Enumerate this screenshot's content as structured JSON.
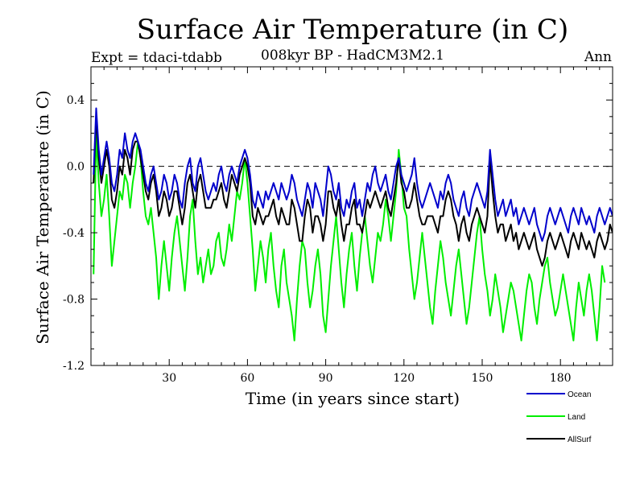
{
  "chart_data": {
    "type": "line",
    "title": "Surface Air Temperature (in C)",
    "subtitle": "008kyr BP - HadCM3M2.1",
    "left_label": "Expt = tdaci-tdabb",
    "right_label": "Ann",
    "xlabel": "Time (in years since start)",
    "ylabel": "Surface Air Temperature (in C)",
    "xlim": [
      0,
      200
    ],
    "ylim": [
      -1.2,
      0.6
    ],
    "x_ticks": [
      30,
      60,
      90,
      120,
      150,
      180
    ],
    "y_ticks": [
      0.4,
      0.0,
      -0.4,
      -0.8,
      -1.2
    ],
    "y_tick_labels": [
      "0.4",
      "0.0",
      "-0.4",
      "-0.8",
      "-1.2"
    ],
    "reference_line": 0.0,
    "series": [
      {
        "name": "Ocean",
        "color": "#0000cc",
        "values": [
          -0.05,
          0.35,
          0.1,
          -0.05,
          0.05,
          0.15,
          0.05,
          -0.1,
          -0.15,
          -0.05,
          0.1,
          0.05,
          0.2,
          0.1,
          0.05,
          0.15,
          0.2,
          0.15,
          0.1,
          0.0,
          -0.1,
          -0.15,
          -0.05,
          0.0,
          -0.1,
          -0.2,
          -0.15,
          -0.05,
          -0.1,
          -0.2,
          -0.15,
          -0.05,
          -0.1,
          -0.2,
          -0.25,
          -0.1,
          0.0,
          0.05,
          -0.1,
          -0.15,
          0.0,
          0.05,
          -0.05,
          -0.15,
          -0.2,
          -0.15,
          -0.1,
          -0.15,
          -0.05,
          0.0,
          -0.1,
          -0.15,
          -0.05,
          0.0,
          -0.05,
          -0.1,
          0.0,
          0.05,
          0.1,
          0.05,
          -0.05,
          -0.2,
          -0.25,
          -0.15,
          -0.2,
          -0.25,
          -0.15,
          -0.2,
          -0.15,
          -0.1,
          -0.15,
          -0.2,
          -0.1,
          -0.15,
          -0.2,
          -0.15,
          -0.05,
          -0.1,
          -0.2,
          -0.25,
          -0.3,
          -0.2,
          -0.1,
          -0.15,
          -0.25,
          -0.1,
          -0.15,
          -0.2,
          -0.3,
          -0.15,
          0.0,
          -0.05,
          -0.15,
          -0.2,
          -0.1,
          -0.25,
          -0.3,
          -0.2,
          -0.25,
          -0.15,
          -0.1,
          -0.25,
          -0.2,
          -0.3,
          -0.2,
          -0.1,
          -0.15,
          -0.05,
          0.0,
          -0.1,
          -0.15,
          -0.1,
          -0.05,
          -0.15,
          -0.2,
          -0.1,
          0.0,
          0.05,
          -0.05,
          -0.1,
          -0.15,
          -0.1,
          -0.05,
          0.05,
          -0.1,
          -0.2,
          -0.25,
          -0.2,
          -0.15,
          -0.1,
          -0.15,
          -0.2,
          -0.25,
          -0.15,
          -0.2,
          -0.1,
          -0.05,
          -0.1,
          -0.2,
          -0.25,
          -0.3,
          -0.2,
          -0.15,
          -0.25,
          -0.3,
          -0.2,
          -0.15,
          -0.1,
          -0.15,
          -0.2,
          -0.25,
          -0.15,
          0.1,
          -0.05,
          -0.2,
          -0.3,
          -0.25,
          -0.2,
          -0.3,
          -0.25,
          -0.2,
          -0.3,
          -0.25,
          -0.35,
          -0.3,
          -0.25,
          -0.3,
          -0.35,
          -0.3,
          -0.25,
          -0.35,
          -0.4,
          -0.45,
          -0.4,
          -0.3,
          -0.25,
          -0.3,
          -0.35,
          -0.3,
          -0.25,
          -0.3,
          -0.35,
          -0.4,
          -0.3,
          -0.25,
          -0.3,
          -0.35,
          -0.25,
          -0.3,
          -0.35,
          -0.3,
          -0.35,
          -0.4,
          -0.3,
          -0.25,
          -0.3,
          -0.35,
          -0.3,
          -0.25,
          -0.3
        ],
        "x_start": 1
      },
      {
        "name": "Land",
        "color": "#00ee00",
        "values": [
          -0.65,
          0.2,
          -0.1,
          -0.3,
          -0.2,
          -0.05,
          -0.3,
          -0.6,
          -0.45,
          -0.3,
          -0.15,
          -0.2,
          -0.05,
          -0.1,
          -0.25,
          -0.1,
          0.0,
          0.15,
          0.05,
          -0.15,
          -0.3,
          -0.35,
          -0.25,
          -0.4,
          -0.55,
          -0.8,
          -0.6,
          -0.45,
          -0.6,
          -0.75,
          -0.55,
          -0.4,
          -0.3,
          -0.45,
          -0.6,
          -0.75,
          -0.55,
          -0.3,
          -0.2,
          -0.45,
          -0.65,
          -0.55,
          -0.7,
          -0.6,
          -0.5,
          -0.65,
          -0.6,
          -0.45,
          -0.4,
          -0.55,
          -0.6,
          -0.5,
          -0.35,
          -0.45,
          -0.3,
          -0.15,
          -0.2,
          -0.1,
          0.05,
          -0.1,
          -0.3,
          -0.5,
          -0.75,
          -0.6,
          -0.45,
          -0.55,
          -0.7,
          -0.5,
          -0.4,
          -0.6,
          -0.75,
          -0.85,
          -0.6,
          -0.5,
          -0.7,
          -0.8,
          -0.9,
          -1.05,
          -0.8,
          -0.6,
          -0.45,
          -0.5,
          -0.7,
          -0.85,
          -0.75,
          -0.6,
          -0.5,
          -0.65,
          -0.9,
          -1.0,
          -0.8,
          -0.6,
          -0.45,
          -0.3,
          -0.5,
          -0.7,
          -0.85,
          -0.65,
          -0.5,
          -0.4,
          -0.6,
          -0.75,
          -0.55,
          -0.4,
          -0.3,
          -0.45,
          -0.6,
          -0.7,
          -0.55,
          -0.4,
          -0.45,
          -0.35,
          -0.2,
          -0.3,
          -0.45,
          -0.3,
          -0.15,
          0.1,
          -0.05,
          -0.25,
          -0.3,
          -0.5,
          -0.65,
          -0.8,
          -0.7,
          -0.55,
          -0.4,
          -0.55,
          -0.7,
          -0.85,
          -0.95,
          -0.75,
          -0.6,
          -0.45,
          -0.55,
          -0.7,
          -0.8,
          -0.9,
          -0.75,
          -0.6,
          -0.5,
          -0.65,
          -0.8,
          -0.95,
          -0.85,
          -0.7,
          -0.55,
          -0.4,
          -0.3,
          -0.5,
          -0.65,
          -0.75,
          -0.9,
          -0.8,
          -0.65,
          -0.75,
          -0.85,
          -1.0,
          -0.9,
          -0.8,
          -0.7,
          -0.75,
          -0.85,
          -0.95,
          -1.05,
          -0.9,
          -0.75,
          -0.65,
          -0.7,
          -0.85,
          -0.95,
          -0.8,
          -0.7,
          -0.6,
          -0.55,
          -0.7,
          -0.8,
          -0.9,
          -0.85,
          -0.75,
          -0.65,
          -0.75,
          -0.85,
          -0.95,
          -1.05,
          -0.85,
          -0.7,
          -0.8,
          -0.9,
          -0.75,
          -0.65,
          -0.75,
          -0.9,
          -1.05,
          -0.85,
          -0.6,
          -0.7
        ],
        "x_start": 1
      },
      {
        "name": "AllSurf",
        "color": "#000000",
        "values": [
          -0.1,
          0.3,
          0.05,
          -0.1,
          0.0,
          0.1,
          0.0,
          -0.2,
          -0.25,
          -0.15,
          0.0,
          -0.05,
          0.1,
          0.05,
          -0.05,
          0.1,
          0.15,
          0.15,
          0.05,
          -0.05,
          -0.15,
          -0.2,
          -0.1,
          -0.05,
          -0.15,
          -0.3,
          -0.25,
          -0.15,
          -0.2,
          -0.3,
          -0.25,
          -0.15,
          -0.15,
          -0.25,
          -0.35,
          -0.25,
          -0.1,
          -0.05,
          -0.15,
          -0.25,
          -0.1,
          -0.05,
          -0.15,
          -0.25,
          -0.25,
          -0.25,
          -0.2,
          -0.2,
          -0.15,
          -0.1,
          -0.2,
          -0.25,
          -0.15,
          -0.05,
          -0.1,
          -0.15,
          -0.05,
          0.0,
          0.05,
          0.0,
          -0.1,
          -0.3,
          -0.35,
          -0.25,
          -0.3,
          -0.35,
          -0.3,
          -0.3,
          -0.25,
          -0.2,
          -0.3,
          -0.35,
          -0.25,
          -0.3,
          -0.35,
          -0.35,
          -0.2,
          -0.25,
          -0.35,
          -0.45,
          -0.45,
          -0.3,
          -0.2,
          -0.25,
          -0.4,
          -0.3,
          -0.3,
          -0.35,
          -0.45,
          -0.35,
          -0.15,
          -0.15,
          -0.25,
          -0.3,
          -0.2,
          -0.35,
          -0.45,
          -0.35,
          -0.35,
          -0.25,
          -0.2,
          -0.35,
          -0.35,
          -0.4,
          -0.3,
          -0.2,
          -0.25,
          -0.2,
          -0.15,
          -0.2,
          -0.25,
          -0.2,
          -0.15,
          -0.25,
          -0.3,
          -0.2,
          -0.1,
          0.05,
          -0.1,
          -0.15,
          -0.25,
          -0.25,
          -0.2,
          -0.1,
          -0.2,
          -0.3,
          -0.35,
          -0.35,
          -0.3,
          -0.3,
          -0.3,
          -0.35,
          -0.4,
          -0.3,
          -0.3,
          -0.2,
          -0.15,
          -0.2,
          -0.3,
          -0.35,
          -0.45,
          -0.35,
          -0.3,
          -0.4,
          -0.45,
          -0.35,
          -0.3,
          -0.25,
          -0.3,
          -0.35,
          -0.4,
          -0.3,
          0.05,
          -0.15,
          -0.3,
          -0.4,
          -0.35,
          -0.35,
          -0.45,
          -0.4,
          -0.35,
          -0.45,
          -0.4,
          -0.5,
          -0.45,
          -0.4,
          -0.45,
          -0.5,
          -0.45,
          -0.4,
          -0.5,
          -0.55,
          -0.6,
          -0.55,
          -0.45,
          -0.4,
          -0.45,
          -0.5,
          -0.45,
          -0.4,
          -0.45,
          -0.5,
          -0.55,
          -0.45,
          -0.4,
          -0.45,
          -0.5,
          -0.4,
          -0.45,
          -0.5,
          -0.45,
          -0.5,
          -0.55,
          -0.45,
          -0.4,
          -0.45,
          -0.5,
          -0.45,
          -0.35,
          -0.4
        ],
        "x_start": 1
      }
    ],
    "legend": {
      "placement": "bottom-right",
      "entries": [
        "Ocean",
        "Land",
        "AllSurf"
      ]
    }
  }
}
